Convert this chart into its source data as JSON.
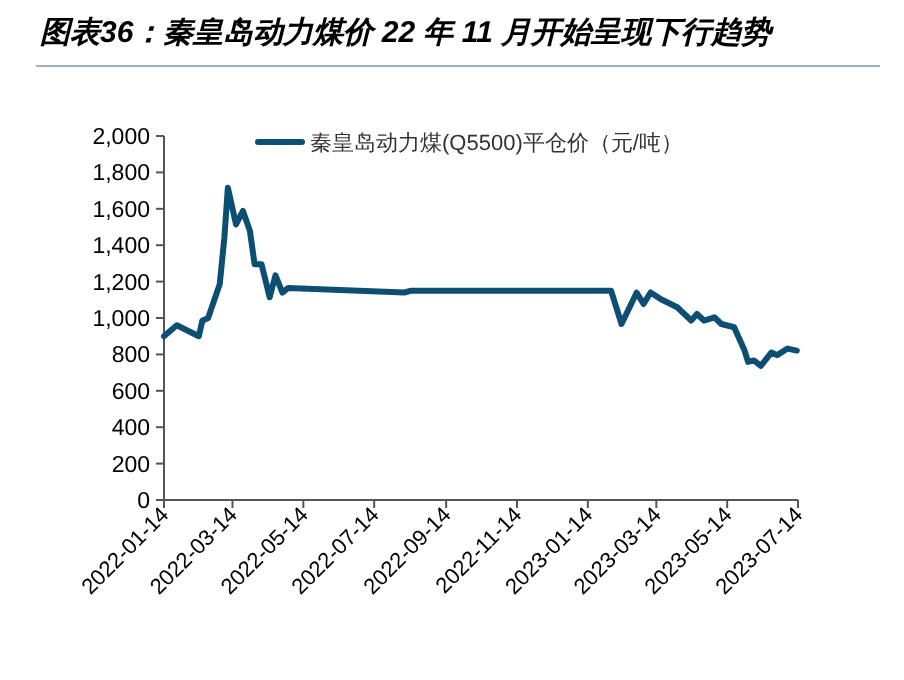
{
  "chart_data": {
    "type": "line",
    "title": "图表36：秦皇岛动力煤价 22 年 11 月开始呈现下行趋势",
    "x": [
      "2022-01-14",
      "2022-01-25",
      "2022-02-13",
      "2022-02-16",
      "2022-02-21",
      "2022-03-03",
      "2022-03-07",
      "2022-03-10",
      "2022-03-17",
      "2022-03-23",
      "2022-03-29",
      "2022-04-02",
      "2022-04-08",
      "2022-04-15",
      "2022-04-20",
      "2022-04-26",
      "2022-05-01",
      "2022-08-09",
      "2022-08-15",
      "2023-02-03",
      "2023-02-12",
      "2023-02-25",
      "2023-03-03",
      "2023-03-09",
      "2023-03-18",
      "2023-04-01",
      "2023-04-13",
      "2023-04-18",
      "2023-04-24",
      "2023-05-03",
      "2023-05-09",
      "2023-05-20",
      "2023-05-29",
      "2023-06-01",
      "2023-06-06",
      "2023-06-12",
      "2023-06-21",
      "2023-06-26",
      "2023-07-05",
      "2023-07-13"
    ],
    "series": [
      {
        "name": "秦皇岛动力煤(Q5500)平仓价（元/吨）",
        "color": "#0d4f73",
        "values": [
          900,
          960,
          900,
          985,
          1000,
          1186,
          1442,
          1716,
          1514,
          1588,
          1478,
          1295,
          1295,
          1114,
          1234,
          1140,
          1165,
          1140,
          1150,
          1150,
          967,
          1139,
          1077,
          1140,
          1103,
          1059,
          986,
          1022,
          986,
          1004,
          967,
          949,
          821,
          759,
          767,
          737,
          810,
          796,
          832,
          821
        ]
      }
    ],
    "xlim": [
      "2022-01-14",
      "2023-07-14"
    ],
    "xticks": [
      "2022-01-14",
      "2022-03-14",
      "2022-05-14",
      "2022-07-14",
      "2022-09-14",
      "2022-11-14",
      "2023-01-14",
      "2023-03-14",
      "2023-05-14",
      "2023-07-14"
    ],
    "ylim": [
      0,
      2000
    ],
    "yticks": [
      0,
      200,
      400,
      600,
      800,
      {
        "value": 1000,
        "label": "1,000"
      },
      {
        "value": 1200,
        "label": "1,200"
      },
      {
        "value": 1400,
        "label": "1,400"
      },
      {
        "value": 1600,
        "label": "1,600"
      },
      {
        "value": 1800,
        "label": "1,800"
      },
      {
        "value": 2000,
        "label": "2,000"
      }
    ],
    "grid": false,
    "legend": "top right",
    "marker": "none",
    "line_style": "solid"
  }
}
